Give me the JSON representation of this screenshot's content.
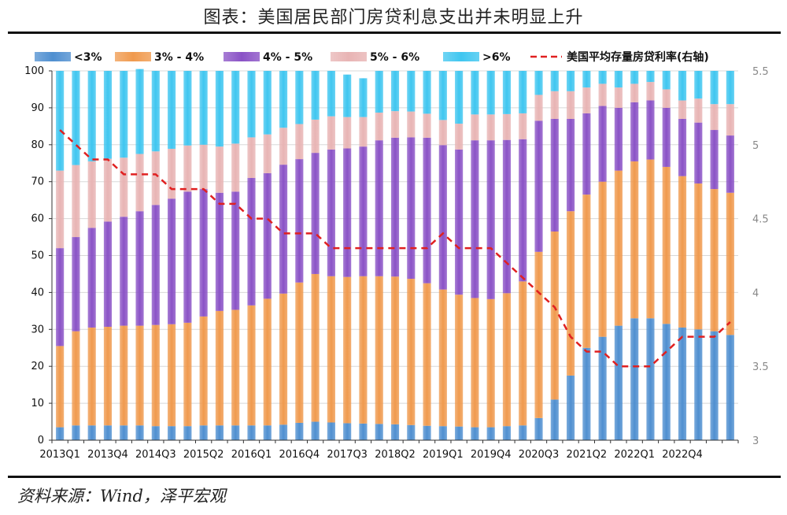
{
  "title": "图表：美国居民部门房贷利息支出并未明显上升",
  "source": "资料来源：Wind，泽平宏观",
  "colors": {
    "lt3": "#4f8fd0",
    "b3_4": "#f09a4e",
    "b4_5": "#8a52c6",
    "b5_6": "#e8b4b4",
    "gt6": "#3fc6f0",
    "rate_line": "#e02020"
  },
  "chart_data": {
    "type": "bar",
    "stacked": true,
    "title": "",
    "categories": [
      "2013Q1",
      "2013Q2",
      "2013Q3",
      "2013Q4",
      "2014Q1",
      "2014Q2",
      "2014Q3",
      "2014Q4",
      "2015Q1",
      "2015Q2",
      "2015Q3",
      "2015Q4",
      "2016Q1",
      "2016Q2",
      "2016Q3",
      "2016Q4",
      "2017Q1",
      "2017Q2",
      "2017Q3",
      "2017Q4",
      "2018Q1",
      "2018Q2",
      "2018Q3",
      "2018Q4",
      "2019Q1",
      "2019Q2",
      "2019Q3",
      "2019Q4",
      "2020Q1",
      "2020Q2",
      "2020Q3",
      "2020Q4",
      "2021Q1",
      "2021Q2",
      "2021Q3",
      "2021Q4",
      "2022Q1",
      "2022Q2",
      "2022Q3",
      "2022Q4",
      "2023Q1",
      "2023Q2",
      "2023Q3"
    ],
    "x_tick_labels": [
      "2013Q1",
      "2013Q4",
      "2014Q3",
      "2015Q2",
      "2016Q1",
      "2016Q4",
      "2017Q3",
      "2018Q2",
      "2019Q1",
      "2019Q4",
      "2020Q3",
      "2021Q2",
      "2022Q1",
      "2022Q4"
    ],
    "ylim": [
      0,
      100
    ],
    "y_ticks": [
      0,
      10,
      20,
      30,
      40,
      50,
      60,
      70,
      80,
      90,
      100
    ],
    "y2lim": [
      3,
      5.5
    ],
    "y2_ticks": [
      "3",
      "3.5",
      "4",
      "4.5",
      "5",
      "5.5"
    ],
    "series": [
      {
        "name": "<3%",
        "color_key": "lt3",
        "values": [
          3.5,
          4,
          4,
          4,
          4,
          4,
          3.8,
          3.8,
          3.8,
          4,
          4,
          4,
          4,
          4,
          4.2,
          4.7,
          5,
          4.8,
          4.6,
          4.5,
          4.4,
          4.3,
          4.1,
          3.9,
          3.8,
          3.7,
          3.5,
          3.5,
          3.8,
          4,
          6,
          11,
          17.5,
          25,
          28,
          31,
          33,
          33,
          31.5,
          30.5,
          30,
          29.5,
          28.5
        ]
      },
      {
        "name": "3% - 4%",
        "color_key": "b3_4",
        "values": [
          22,
          25.5,
          26.5,
          26.7,
          27,
          27,
          27.4,
          27.6,
          28,
          29.5,
          31,
          31.3,
          32.5,
          34.3,
          35.5,
          38,
          40,
          39.6,
          39.6,
          39.9,
          40,
          40,
          39.6,
          38.6,
          37,
          35.7,
          35,
          34.7,
          36,
          39,
          45,
          45.5,
          44.5,
          41.5,
          42,
          42,
          42.5,
          43,
          42.5,
          41,
          39.5,
          38.5,
          38.5
        ]
      },
      {
        "name": "4% - 5%",
        "color_key": "b4_5",
        "values": [
          26.5,
          25.5,
          27,
          28.5,
          29.5,
          31,
          32.5,
          34,
          35.5,
          34.5,
          32,
          32,
          34.5,
          34,
          34.9,
          33.4,
          32.8,
          34.3,
          34.8,
          35.1,
          36.8,
          37.6,
          38.3,
          39.4,
          39.1,
          39.3,
          42.7,
          43,
          41.5,
          38.5,
          35.5,
          30.5,
          25,
          22,
          20.5,
          17,
          16,
          16,
          16,
          15.5,
          16.5,
          16,
          15.5
        ]
      },
      {
        "name": "5% - 6%",
        "color_key": "b5_6",
        "values": [
          21,
          19.5,
          18,
          17,
          16,
          15.5,
          14.5,
          13.5,
          12.5,
          12,
          12.5,
          13,
          11,
          10.5,
          10,
          9.5,
          9,
          9,
          8.5,
          8,
          7.5,
          7.2,
          7,
          6.5,
          6.8,
          7,
          7,
          7,
          7,
          7,
          7,
          7.5,
          7.5,
          7,
          6,
          5.5,
          5,
          5,
          5,
          5,
          6.5,
          7,
          8.5
        ]
      },
      {
        "name": ">6%",
        "color_key": "gt6",
        "values": [
          27,
          25.5,
          24.5,
          23.8,
          23.5,
          23,
          21.8,
          21.1,
          20.2,
          20,
          20.5,
          19.7,
          18,
          17.2,
          15.4,
          14.4,
          13.2,
          12.3,
          11.5,
          10.5,
          11.3,
          10.9,
          11,
          11.6,
          13.3,
          14.3,
          11.8,
          11.8,
          11.7,
          11.5,
          6.5,
          5.5,
          5.5,
          4.5,
          3.5,
          4.5,
          3.5,
          3,
          5,
          8,
          7.5,
          9,
          9
        ]
      },
      {
        "name": "美国平均存量房贷利率(右轴)",
        "color_key": "rate_line",
        "type": "line",
        "axis": "right",
        "dashed": true,
        "values": [
          5.1,
          5.0,
          4.9,
          4.9,
          4.8,
          4.8,
          4.8,
          4.7,
          4.7,
          4.7,
          4.6,
          4.6,
          4.5,
          4.5,
          4.4,
          4.4,
          4.4,
          4.3,
          4.3,
          4.3,
          4.3,
          4.3,
          4.3,
          4.3,
          4.4,
          4.3,
          4.3,
          4.3,
          4.2,
          4.1,
          4.0,
          3.9,
          3.7,
          3.6,
          3.6,
          3.5,
          3.5,
          3.5,
          3.6,
          3.7,
          3.7,
          3.7,
          3.8
        ]
      }
    ]
  }
}
